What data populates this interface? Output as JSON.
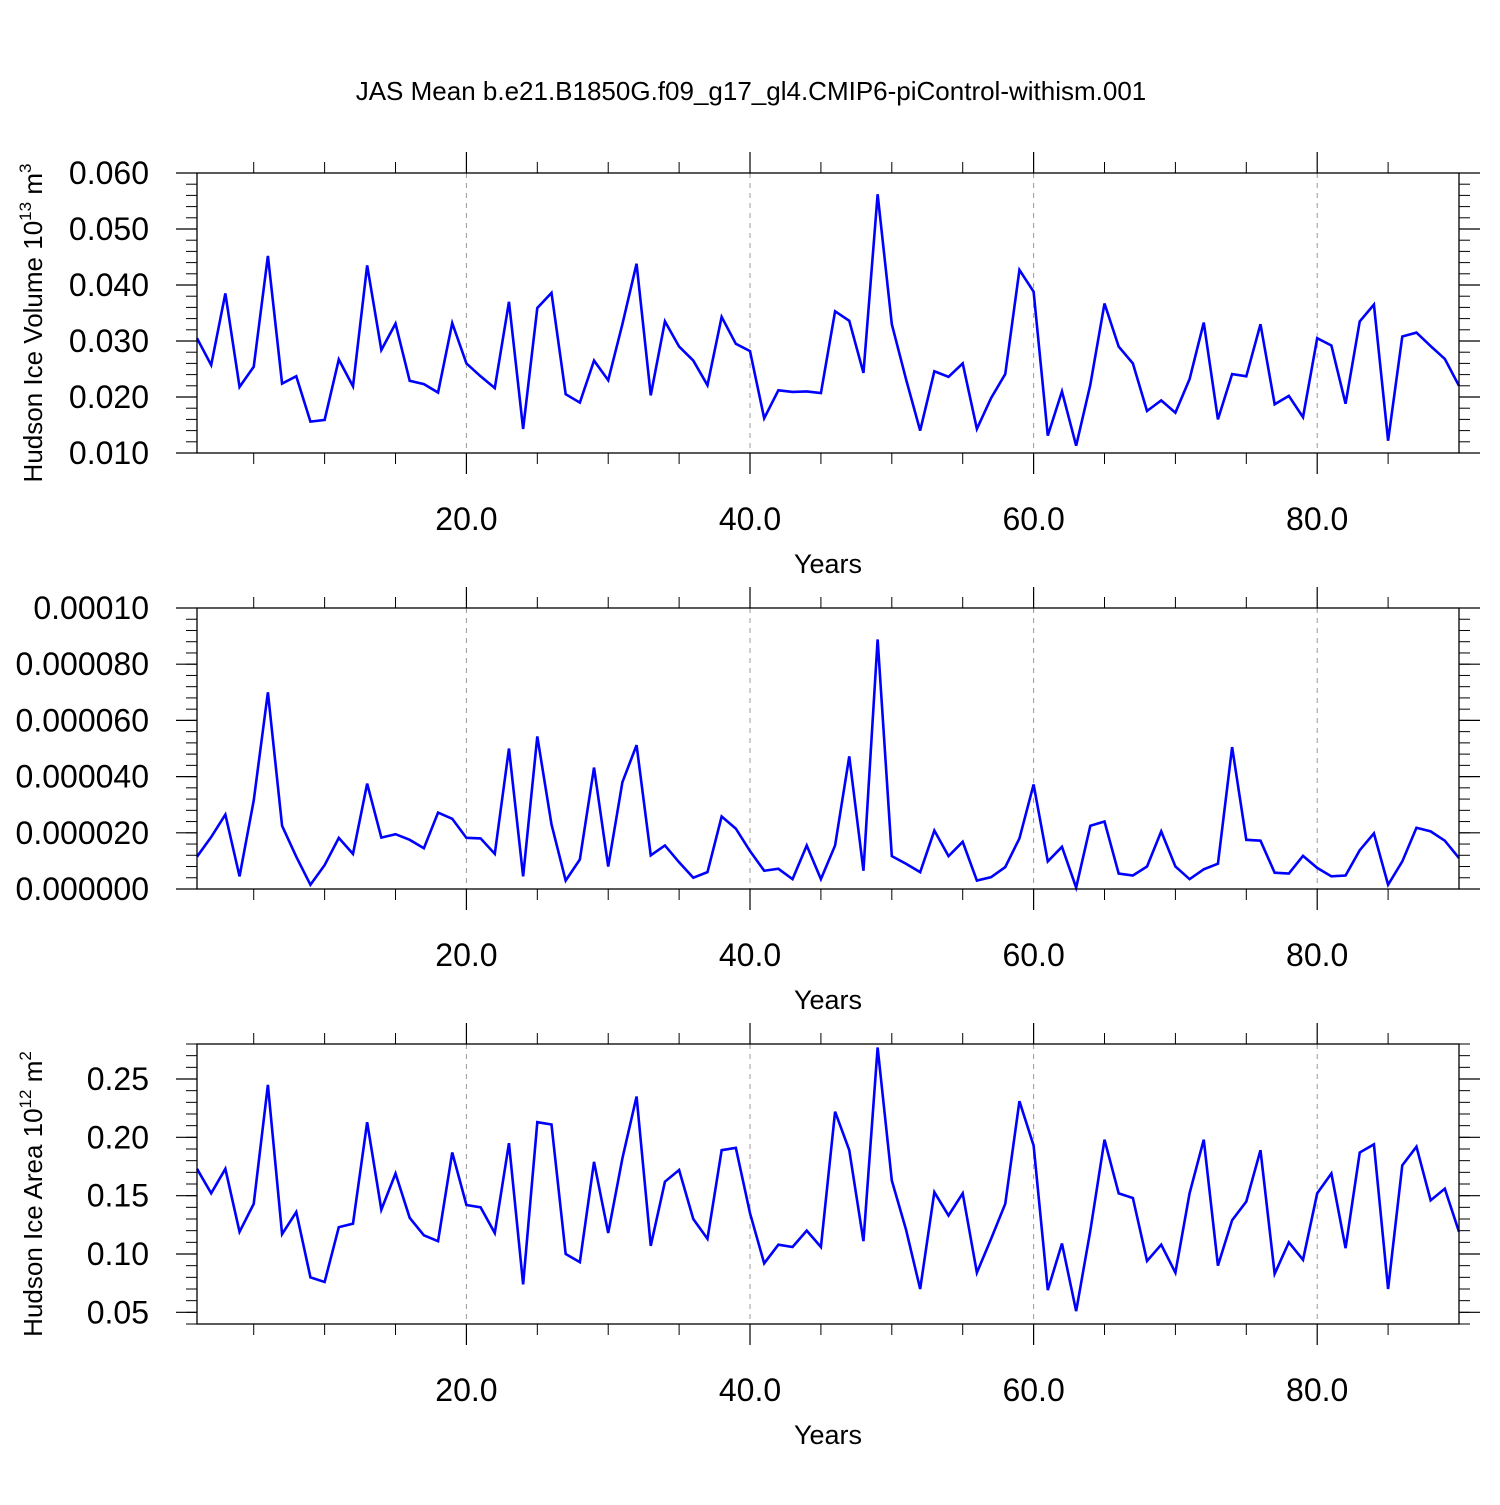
{
  "figure": {
    "title": "JAS Mean b.e21.B1850G.f09_g17_gl4.CMIP6-piControl-withism.001",
    "line_color": "#0000ff"
  },
  "chart_data": [
    {
      "type": "line",
      "title": "",
      "xlabel": "Years",
      "ylabel": {
        "base": "Hudson Ice Volume 10",
        "sup": "13",
        "unit": " m",
        "unit_sup": "3"
      },
      "xlim": [
        1,
        90
      ],
      "ylim": [
        0.01,
        0.06
      ],
      "x_ticks": [
        20,
        40,
        60,
        80
      ],
      "x_tick_labels": [
        "20.0",
        "40.0",
        "60.0",
        "80.0"
      ],
      "y_ticks": [
        0.01,
        0.02,
        0.03,
        0.04,
        0.05,
        0.06
      ],
      "y_tick_labels": [
        "0.010",
        "0.020",
        "0.030",
        "0.040",
        "0.050",
        "0.060"
      ],
      "y_minor_step": 0.002,
      "grid": "vertical dashed at major x ticks",
      "x": [
        1,
        2,
        3,
        4,
        5,
        6,
        7,
        8,
        9,
        10,
        11,
        12,
        13,
        14,
        15,
        16,
        17,
        18,
        19,
        20,
        21,
        22,
        23,
        24,
        25,
        26,
        27,
        28,
        29,
        30,
        31,
        32,
        33,
        34,
        35,
        36,
        37,
        38,
        39,
        40,
        41,
        42,
        43,
        44,
        45,
        46,
        47,
        48,
        49,
        50,
        51,
        52,
        53,
        54,
        55,
        56,
        57,
        58,
        59,
        60,
        61,
        62,
        63,
        64,
        65,
        66,
        67,
        68,
        69,
        70,
        71,
        72,
        73,
        74,
        75,
        76,
        77,
        78,
        79,
        80,
        81,
        82,
        83,
        84,
        85,
        86,
        87,
        88,
        89,
        90
      ],
      "series": [
        {
          "values": [
            0.0305,
            0.0257,
            0.0385,
            0.0218,
            0.0254,
            0.0452,
            0.0224,
            0.0237,
            0.0156,
            0.0159,
            0.0267,
            0.0219,
            0.0435,
            0.0284,
            0.0331,
            0.0229,
            0.0223,
            0.0208,
            0.0332,
            0.026,
            0.0237,
            0.0216,
            0.037,
            0.0143,
            0.0359,
            0.0386,
            0.0205,
            0.019,
            0.0265,
            0.023,
            0.033,
            0.0438,
            0.0203,
            0.0335,
            0.029,
            0.0265,
            0.0221,
            0.0343,
            0.0295,
            0.0282,
            0.0162,
            0.0212,
            0.0209,
            0.021,
            0.0207,
            0.0353,
            0.0336,
            0.0243,
            0.0562,
            0.033,
            0.0232,
            0.014,
            0.0246,
            0.0236,
            0.026,
            0.0143,
            0.0198,
            0.0241,
            0.0427,
            0.0388,
            0.0131,
            0.021,
            0.0113,
            0.0222,
            0.0367,
            0.029,
            0.026,
            0.0175,
            0.0194,
            0.0172,
            0.0232,
            0.0333,
            0.016,
            0.0241,
            0.0237,
            0.033,
            0.0187,
            0.0202,
            0.0164,
            0.0305,
            0.0292,
            0.0188,
            0.0335,
            0.0365,
            0.0122,
            0.0308,
            0.0315,
            0.0291,
            0.0268,
            0.022
          ]
        }
      ]
    },
    {
      "type": "line",
      "title": "",
      "xlabel": "Years",
      "ylabel": null,
      "xlim": [
        1,
        90
      ],
      "ylim": [
        0.0,
        0.0001
      ],
      "x_ticks": [
        20,
        40,
        60,
        80
      ],
      "x_tick_labels": [
        "20.0",
        "40.0",
        "60.0",
        "80.0"
      ],
      "y_ticks": [
        0.0,
        2e-05,
        4e-05,
        6e-05,
        8e-05,
        0.0001
      ],
      "y_tick_labels": [
        "0.000000",
        "0.000020",
        "0.000040",
        "0.000060",
        "0.000080",
        "0.00010"
      ],
      "y_minor_step": 4e-06,
      "grid": "vertical dashed at major x ticks",
      "x": [
        1,
        2,
        3,
        4,
        5,
        6,
        7,
        8,
        9,
        10,
        11,
        12,
        13,
        14,
        15,
        16,
        17,
        18,
        19,
        20,
        21,
        22,
        23,
        24,
        25,
        26,
        27,
        28,
        29,
        30,
        31,
        32,
        33,
        34,
        35,
        36,
        37,
        38,
        39,
        40,
        41,
        42,
        43,
        44,
        45,
        46,
        47,
        48,
        49,
        50,
        51,
        52,
        53,
        54,
        55,
        56,
        57,
        58,
        59,
        60,
        61,
        62,
        63,
        64,
        65,
        66,
        67,
        68,
        69,
        70,
        71,
        72,
        73,
        74,
        75,
        76,
        77,
        78,
        79,
        80,
        81,
        82,
        83,
        84,
        85,
        86,
        87,
        88,
        89,
        90
      ],
      "series": [
        {
          "values": [
            1.15e-05,
            1.85e-05,
            2.65e-05,
            4.5e-06,
            3.15e-05,
            7e-05,
            2.25e-05,
            1.15e-05,
            1.5e-06,
            8.5e-06,
            1.82e-05,
            1.25e-05,
            3.75e-05,
            1.83e-05,
            1.95e-05,
            1.75e-05,
            1.45e-05,
            2.72e-05,
            2.5e-05,
            1.82e-05,
            1.8e-05,
            1.25e-05,
            5e-05,
            4.5e-06,
            5.43e-05,
            2.3e-05,
            3e-06,
            1.05e-05,
            4.32e-05,
            8e-06,
            3.8e-05,
            5.12e-05,
            1.2e-05,
            1.55e-05,
            9.5e-06,
            4e-06,
            6e-06,
            2.58e-05,
            2.15e-05,
            1.35e-05,
            6.5e-06,
            7.2e-06,
            3.5e-06,
            1.55e-05,
            3.5e-06,
            1.55e-05,
            4.72e-05,
            6.5e-06,
            8.88e-05,
            1.17e-05,
            9e-06,
            6e-06,
            2.08e-05,
            1.17e-05,
            1.68e-05,
            3e-06,
            4.2e-06,
            7.8e-06,
            1.8e-05,
            3.72e-05,
            9.8e-06,
            1.5e-05,
            5e-07,
            2.25e-05,
            2.4e-05,
            5.5e-06,
            4.8e-06,
            8e-06,
            2.05e-05,
            8e-06,
            3.5e-06,
            7e-06,
            9e-06,
            5.05e-05,
            1.75e-05,
            1.72e-05,
            5.8e-06,
            5.5e-06,
            1.18e-05,
            7.5e-06,
            4.5e-06,
            4.8e-06,
            1.38e-05,
            1.98e-05,
            1.5e-06,
            9.8e-06,
            2.18e-05,
            2.05e-05,
            1.72e-05,
            1.1e-05
          ]
        }
      ]
    },
    {
      "type": "line",
      "title": "",
      "xlabel": "Years",
      "ylabel": {
        "base": "Hudson Ice Area 10",
        "sup": "12",
        "unit": " m",
        "unit_sup": "2"
      },
      "xlim": [
        1,
        90
      ],
      "ylim": [
        0.04,
        0.28
      ],
      "x_ticks": [
        20,
        40,
        60,
        80
      ],
      "x_tick_labels": [
        "20.0",
        "40.0",
        "60.0",
        "80.0"
      ],
      "y_ticks": [
        0.05,
        0.1,
        0.15,
        0.2,
        0.25
      ],
      "y_tick_labels": [
        "0.05",
        "0.10",
        "0.15",
        "0.20",
        "0.25"
      ],
      "y_minor_step": 0.01,
      "grid": "vertical dashed at major x ticks",
      "x": [
        1,
        2,
        3,
        4,
        5,
        6,
        7,
        8,
        9,
        10,
        11,
        12,
        13,
        14,
        15,
        16,
        17,
        18,
        19,
        20,
        21,
        22,
        23,
        24,
        25,
        26,
        27,
        28,
        29,
        30,
        31,
        32,
        33,
        34,
        35,
        36,
        37,
        38,
        39,
        40,
        41,
        42,
        43,
        44,
        45,
        46,
        47,
        48,
        49,
        50,
        51,
        52,
        53,
        54,
        55,
        56,
        57,
        58,
        59,
        60,
        61,
        62,
        63,
        64,
        65,
        66,
        67,
        68,
        69,
        70,
        71,
        72,
        73,
        74,
        75,
        76,
        77,
        78,
        79,
        80,
        81,
        82,
        83,
        84,
        85,
        86,
        87,
        88,
        89,
        90
      ],
      "series": [
        {
          "values": [
            0.173,
            0.152,
            0.173,
            0.119,
            0.143,
            0.245,
            0.117,
            0.136,
            0.08,
            0.076,
            0.123,
            0.126,
            0.213,
            0.138,
            0.169,
            0.131,
            0.116,
            0.111,
            0.187,
            0.142,
            0.14,
            0.118,
            0.195,
            0.074,
            0.213,
            0.211,
            0.1,
            0.093,
            0.179,
            0.118,
            0.182,
            0.235,
            0.107,
            0.162,
            0.172,
            0.13,
            0.113,
            0.189,
            0.191,
            0.135,
            0.092,
            0.108,
            0.106,
            0.12,
            0.106,
            0.222,
            0.189,
            0.111,
            0.277,
            0.163,
            0.121,
            0.07,
            0.153,
            0.133,
            0.152,
            0.084,
            0.113,
            0.143,
            0.231,
            0.193,
            0.069,
            0.109,
            0.051,
            0.12,
            0.198,
            0.152,
            0.148,
            0.094,
            0.108,
            0.084,
            0.152,
            0.198,
            0.09,
            0.129,
            0.145,
            0.189,
            0.083,
            0.11,
            0.095,
            0.152,
            0.169,
            0.105,
            0.187,
            0.194,
            0.07,
            0.176,
            0.192,
            0.146,
            0.156,
            0.119
          ]
        }
      ]
    }
  ]
}
